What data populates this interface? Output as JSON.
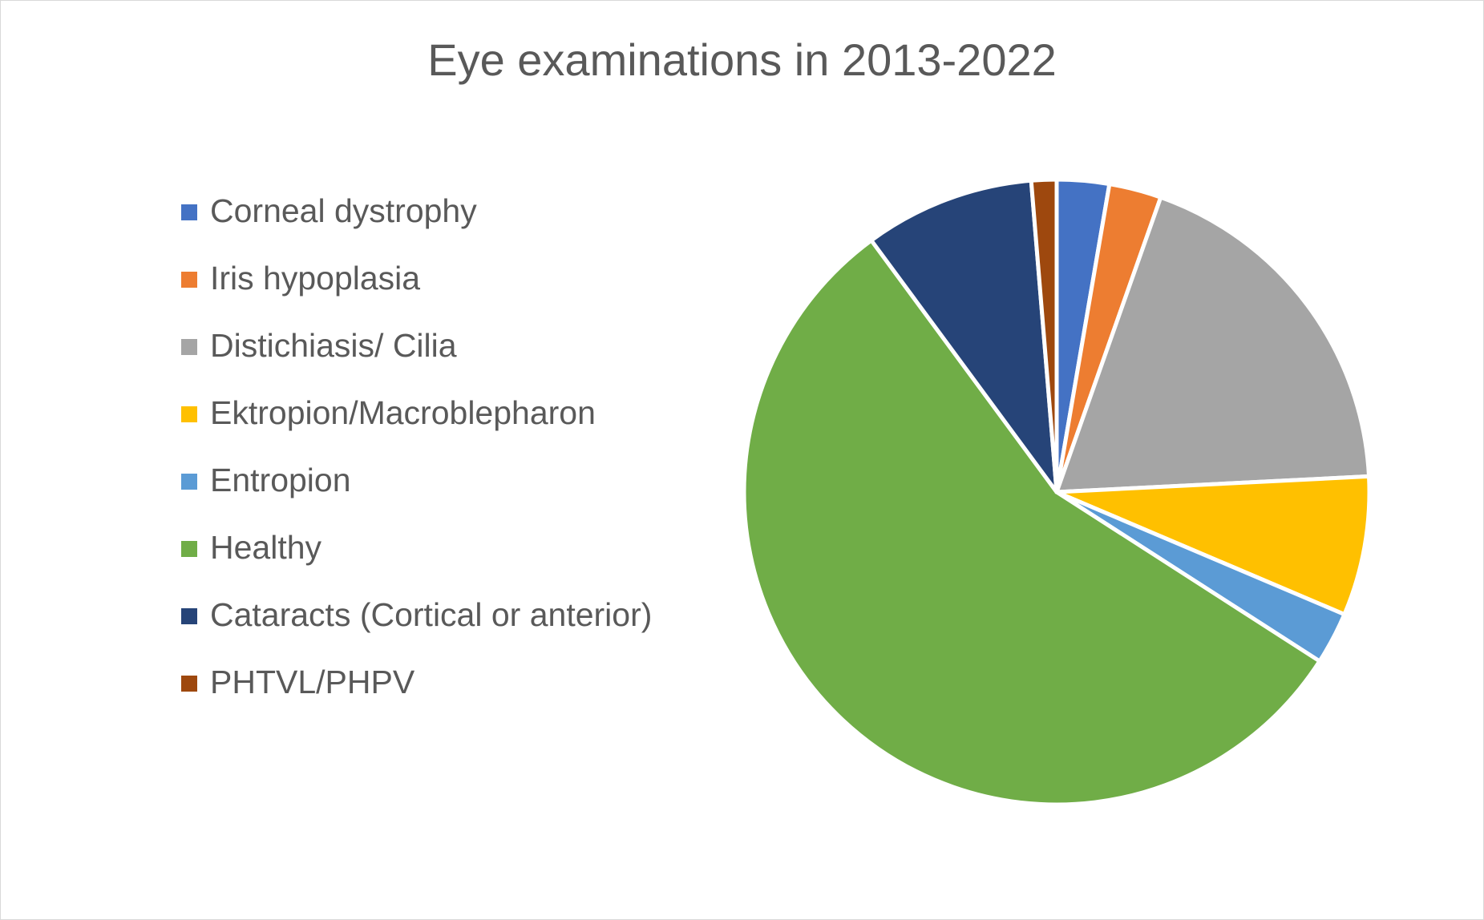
{
  "chart_data": {
    "type": "pie",
    "title": "Eye examinations in 2013-2022",
    "legend_position": "left",
    "slices": [
      {
        "label": "Corneal dystrophy",
        "value": 2.7,
        "color": "#4472C4"
      },
      {
        "label": "Iris hypoplasia",
        "value": 2.7,
        "color": "#ED7D31"
      },
      {
        "label": "Distichiasis/ Cilia",
        "value": 18.8,
        "color": "#A5A5A5"
      },
      {
        "label": "Ektropion/Macroblepharon",
        "value": 7.2,
        "color": "#FFC000"
      },
      {
        "label": "Entropion",
        "value": 2.7,
        "color": "#5B9BD5"
      },
      {
        "label": "Healthy",
        "value": 55.8,
        "color": "#70AD47"
      },
      {
        "label": "Cataracts (Cortical or anterior)",
        "value": 8.8,
        "color": "#264478"
      },
      {
        "label": "PHTVL/PHPV",
        "value": 1.3,
        "color": "#9E480E"
      }
    ]
  }
}
